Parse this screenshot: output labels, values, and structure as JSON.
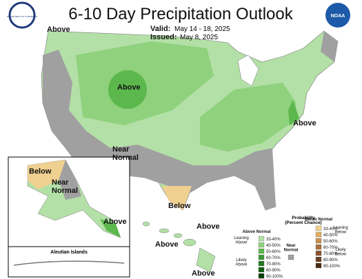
{
  "header": {
    "title": "6-10 Day Precipitation Outlook",
    "valid_label": "Valid:",
    "valid_dates": "May 14 - 18, 2025",
    "issued_label": "Issued:",
    "issued_date": "May 8, 2025",
    "left_logo": "DEPARTMENT OF COMMERCE",
    "right_logo": "NOAA"
  },
  "map_labels": [
    "Above",
    "Above",
    "Above",
    "Near\nNormal",
    "Below"
  ],
  "alaska_labels": [
    "Below",
    "Near\nNormal",
    "Above"
  ],
  "aleutian_label": "Aleutian Islands",
  "hawaii_labels": [
    "Above",
    "Above",
    "Above"
  ],
  "legend": {
    "title": "Probability\n(Percent Chance)",
    "above_title": "Above Normal",
    "below_title": "Below Normal",
    "near_title": "Near\nNormal",
    "near_color": "#a0a0a0",
    "above": {
      "bins": [
        "33-40%",
        "40-50%",
        "50-60%",
        "60-70%",
        "70-80%",
        "80-90%",
        "90-100%"
      ],
      "colors": [
        "#b3e0a6",
        "#8fd17d",
        "#5cb84d",
        "#3a9a35",
        "#247a22",
        "#135e12",
        "#0a400a"
      ],
      "leaning": "Leaning\nAbove",
      "likely": "Likely\nAbove"
    },
    "below": {
      "bins": [
        "33-40%",
        "40-50%",
        "50-60%",
        "60-70%",
        "70-80%",
        "80-90%",
        "90-100%"
      ],
      "colors": [
        "#f0d090",
        "#e0b060",
        "#c89050",
        "#a87040",
        "#8a5530",
        "#6a4020",
        "#4a2a10"
      ],
      "leaning": "Leaning\nBelow",
      "likely": "Likely\nBelow"
    }
  }
}
